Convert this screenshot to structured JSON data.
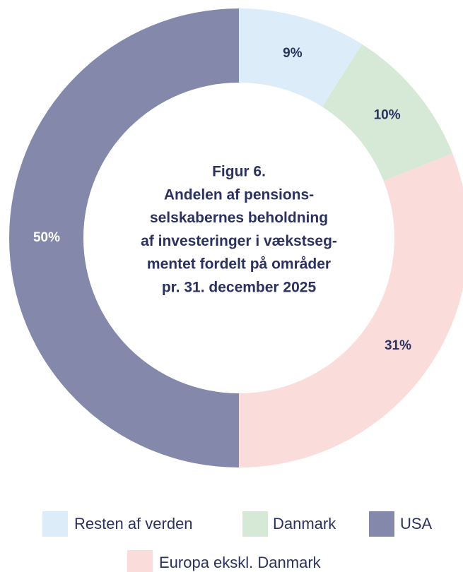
{
  "chart_data": {
    "type": "pie",
    "title": [
      "Figur 6.",
      "Andelen af pensions-",
      "selskabernes beholdning",
      "af investeringer i vækstseg-",
      "mentet fordelt på områder",
      "pr. 31. december 2025"
    ],
    "categories": [
      "Resten af verden",
      "Danmark",
      "Europa ekskl. Danmark",
      "USA"
    ],
    "values": [
      9,
      10,
      31,
      50
    ],
    "value_labels": [
      "9%",
      "10%",
      "31%",
      "50%"
    ],
    "colors": [
      "#dcedf9",
      "#d6e9d6",
      "#fadcdb",
      "#8488aa"
    ],
    "label_colors": [
      "#2b3160",
      "#2b3160",
      "#2b3160",
      "#ffffff"
    ]
  }
}
